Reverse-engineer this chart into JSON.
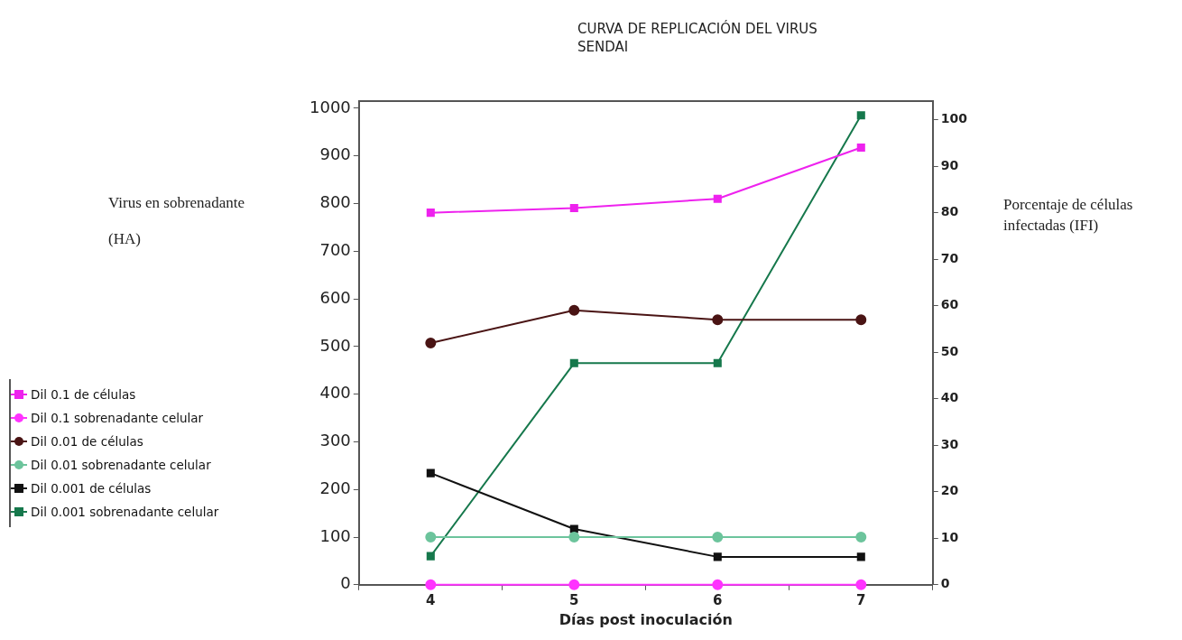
{
  "chart_data": {
    "type": "line",
    "title": "CURVA DE REPLICACIÓN DEL VIRUS SENDAI",
    "xlabel": "Días post inoculación",
    "ylabel": "Virus en sobrenadante (HA)",
    "y2label": "Porcentaje de células infectadas (IFI)",
    "categories": [
      "4",
      "5",
      "6",
      "7"
    ],
    "ylim": [
      0,
      1015
    ],
    "yticks": [
      0,
      100,
      200,
      300,
      400,
      500,
      600,
      700,
      800,
      900,
      1000
    ],
    "y2lim": [
      0,
      104
    ],
    "y2ticks": [
      0,
      10,
      20,
      30,
      40,
      50,
      60,
      70,
      80,
      90,
      100
    ],
    "grid": false,
    "legend": "left",
    "line_style": "solid",
    "series": [
      {
        "name": "Dil 0.1 de células",
        "color": "#ee22ee",
        "axis": "y2",
        "marker": "square",
        "values": [
          80,
          81,
          83,
          94
        ]
      },
      {
        "name": "Dil 0.1 sobrenadante celular",
        "color": "#ff33ff",
        "axis": "y",
        "marker": "circle",
        "values": [
          0,
          0,
          0,
          0
        ]
      },
      {
        "name": "Dil 0.01 de células",
        "color": "#4a1414",
        "axis": "y2",
        "marker": "circle",
        "values": [
          52,
          59,
          57,
          57
        ]
      },
      {
        "name": "Dil 0.01 sobrenadante celular",
        "color": "#6cc49c",
        "axis": "y",
        "marker": "circle",
        "values": [
          100,
          100,
          100,
          100
        ]
      },
      {
        "name": "Dil 0.001 de células",
        "color": "#111111",
        "axis": "y2",
        "marker": "square",
        "values": [
          24,
          12,
          6,
          6
        ]
      },
      {
        "name": "Dil 0.001 sobrenadante celular",
        "color": "#16784c",
        "axis": "y",
        "marker": "square",
        "values": [
          60,
          465,
          465,
          985
        ]
      }
    ]
  }
}
